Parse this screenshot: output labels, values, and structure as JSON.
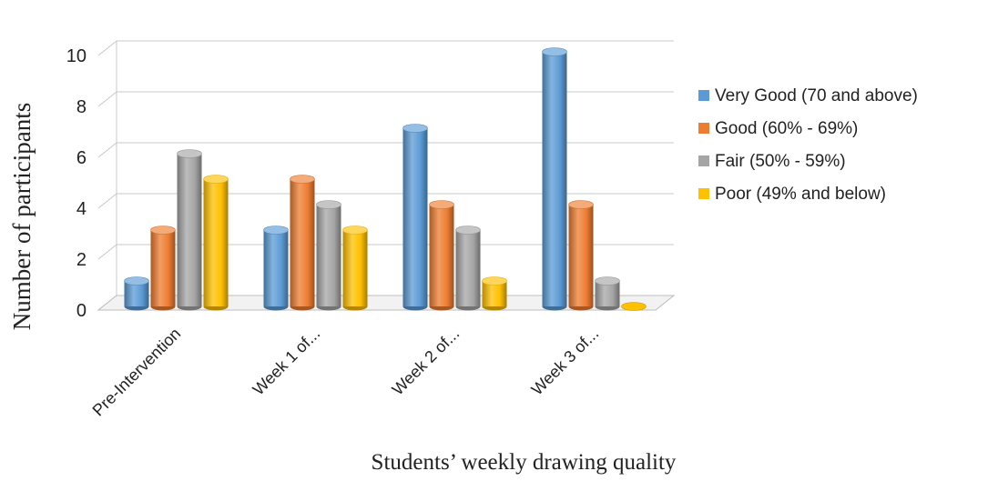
{
  "chart_data": {
    "type": "bar",
    "style": "3d-cylinder",
    "xlabel": "Students’ weekly drawing quality",
    "ylabel": "Number of participants",
    "ylim": [
      0,
      10
    ],
    "yticks": [
      "0",
      "2",
      "4",
      "6",
      "8",
      "10"
    ],
    "grid": true,
    "legend_position": "right",
    "categories": [
      "Pre-Intervention",
      "Week 1 of...",
      "Week 2 of...",
      "Week 3 of..."
    ],
    "series": [
      {
        "name": "Very Good (70 and above)",
        "color": "#5b9bd5",
        "values": [
          1,
          3,
          7,
          10
        ]
      },
      {
        "name": "Good (60% - 69%)",
        "color": "#ed7d31",
        "values": [
          3,
          5,
          4,
          4
        ]
      },
      {
        "name": "Fair (50% - 59%)",
        "color": "#a5a5a5",
        "values": [
          6,
          4,
          3,
          1
        ]
      },
      {
        "name": "Poor (49% and below)",
        "color": "#ffc000",
        "values": [
          5,
          3,
          1,
          0
        ]
      }
    ]
  }
}
